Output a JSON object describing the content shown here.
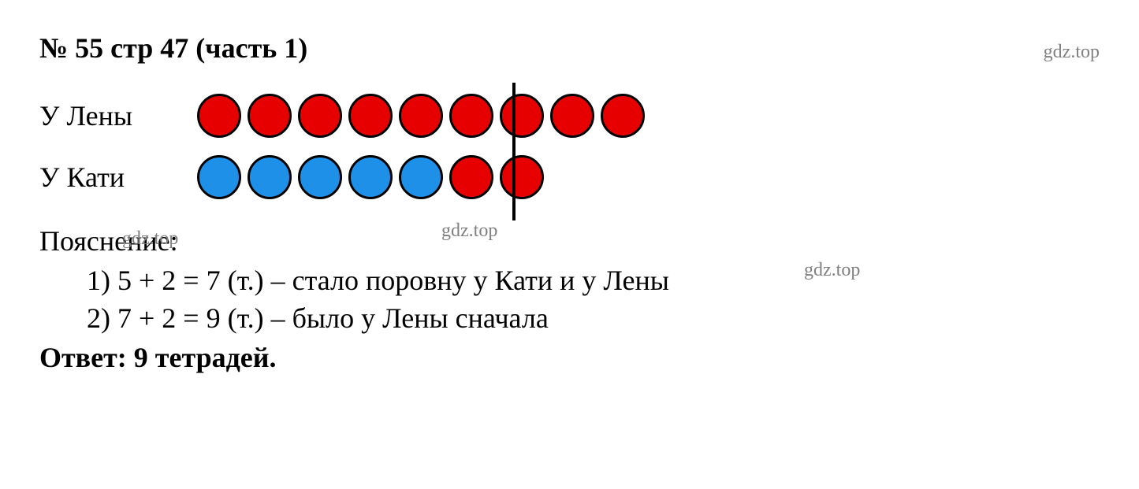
{
  "title": "№ 55 стр 47 (часть 1)",
  "watermarks": {
    "top_right": "gdz.top",
    "mid_left": "gdz.top",
    "mid_center": "gdz.top",
    "mid_right": "gdz.top"
  },
  "rows": {
    "lena": {
      "label": "У Лены",
      "circles": [
        {
          "color": "#e60000"
        },
        {
          "color": "#e60000"
        },
        {
          "color": "#e60000"
        },
        {
          "color": "#e60000"
        },
        {
          "color": "#e60000"
        },
        {
          "color": "#e60000"
        },
        {
          "color": "#e60000"
        },
        {
          "color": "#e60000"
        },
        {
          "color": "#e60000"
        }
      ]
    },
    "katya": {
      "label": "У Кати",
      "circles": [
        {
          "color": "#1e90e8"
        },
        {
          "color": "#1e90e8"
        },
        {
          "color": "#1e90e8"
        },
        {
          "color": "#1e90e8"
        },
        {
          "color": "#1e90e8"
        },
        {
          "color": "#e60000"
        },
        {
          "color": "#e60000"
        }
      ]
    }
  },
  "explanation_label": "Пояснение:",
  "steps": [
    "1)  5 + 2 = 7 (т.) – стало поровну у Кати и у Лены",
    "2)  7 + 2 = 9 (т.) – было у Лены сначала"
  ],
  "answer_label": "Ответ: ",
  "answer_value": "9 тетрадей.",
  "colors": {
    "red": "#e60000",
    "blue": "#1e90e8",
    "black": "#000000",
    "gray": "#808080",
    "background": "#ffffff"
  },
  "typography": {
    "title_fontsize": 36,
    "body_fontsize": 36,
    "watermark_fontsize": 24,
    "font_family": "Times New Roman"
  },
  "circle_style": {
    "size": 56,
    "border_width": 3,
    "border_color": "#000000",
    "gap": 8
  },
  "divider": {
    "width": 4,
    "height": 175,
    "color": "#000000",
    "after_circle_index": 7
  }
}
